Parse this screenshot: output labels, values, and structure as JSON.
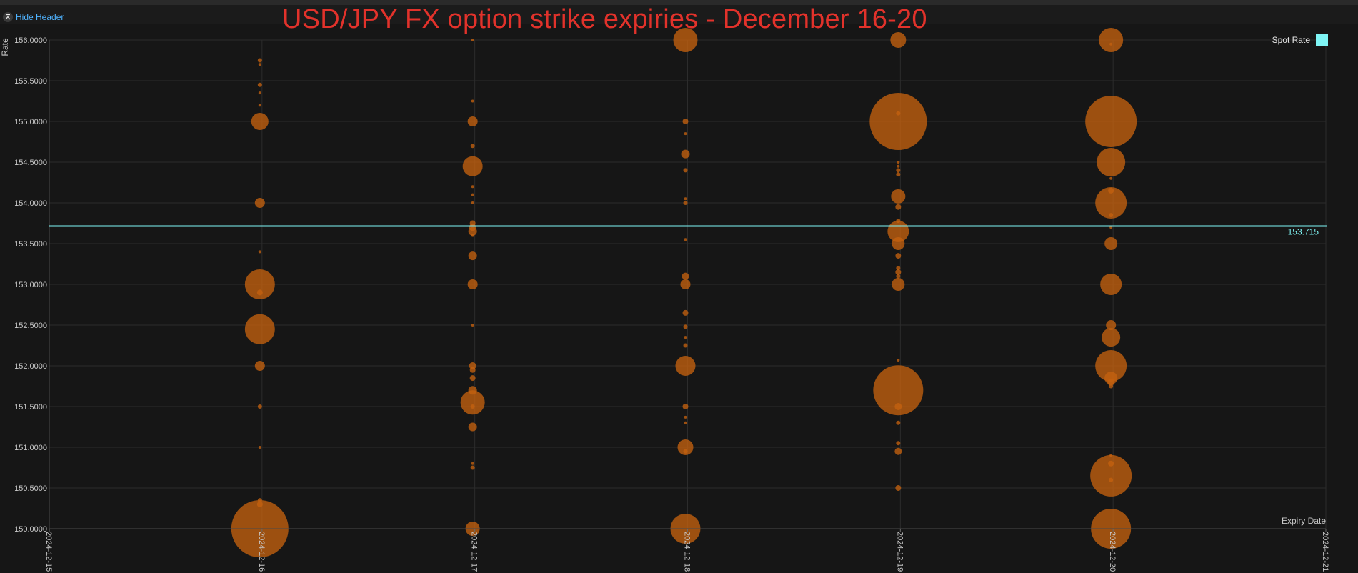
{
  "header": {
    "toggle_label": "Hide Header",
    "title": "USD/JPY FX option strike expiries - December 16-20"
  },
  "colors": {
    "bubble": "#c4620f",
    "spot": "#7ff5f5",
    "title": "#e2322b",
    "grid": "#2c2c2c"
  },
  "chart_data": {
    "type": "scatter",
    "title": "USD/JPY FX option strike expiries - December 16-20",
    "xlabel": "Expiry Date",
    "ylabel": "Rate",
    "ylim": [
      150.0,
      156.0
    ],
    "y_ticks": [
      "150.0000",
      "150.5000",
      "151.0000",
      "151.5000",
      "152.0000",
      "152.5000",
      "153.0000",
      "153.5000",
      "154.0000",
      "154.5000",
      "155.0000",
      "155.5000",
      "156.0000"
    ],
    "x_ticks": [
      "2024-12-15",
      "2024-12-16",
      "2024-12-17",
      "2024-12-18",
      "2024-12-19",
      "2024-12-20",
      "2024-12-21"
    ],
    "legend": {
      "label": "Spot Rate",
      "position": "top-right"
    },
    "spot_rate": {
      "value": 153.715,
      "label": "153.715"
    },
    "grid": true,
    "series": [
      {
        "x": "2024-12-16",
        "points": [
          [
            155.75,
            3
          ],
          [
            155.7,
            2
          ],
          [
            155.45,
            3
          ],
          [
            155.35,
            2
          ],
          [
            155.2,
            2
          ],
          [
            155.0,
            12
          ],
          [
            154.0,
            7
          ],
          [
            153.4,
            2
          ],
          [
            153.0,
            21
          ],
          [
            152.9,
            4
          ],
          [
            152.45,
            21
          ],
          [
            152.0,
            7
          ],
          [
            151.5,
            3
          ],
          [
            151.0,
            2
          ],
          [
            150.35,
            3
          ],
          [
            150.3,
            4
          ],
          [
            150.0,
            40
          ]
        ]
      },
      {
        "x": "2024-12-17",
        "points": [
          [
            156.0,
            2
          ],
          [
            155.25,
            2
          ],
          [
            155.0,
            7
          ],
          [
            154.7,
            3
          ],
          [
            154.45,
            14
          ],
          [
            154.2,
            2
          ],
          [
            154.1,
            2
          ],
          [
            154.0,
            2
          ],
          [
            153.75,
            4
          ],
          [
            153.7,
            5
          ],
          [
            153.65,
            6
          ],
          [
            153.6,
            2
          ],
          [
            153.35,
            6
          ],
          [
            153.0,
            7
          ],
          [
            152.5,
            2
          ],
          [
            152.0,
            5
          ],
          [
            151.95,
            4
          ],
          [
            151.85,
            4
          ],
          [
            151.7,
            6
          ],
          [
            151.55,
            17
          ],
          [
            151.5,
            3
          ],
          [
            151.25,
            6
          ],
          [
            150.8,
            2
          ],
          [
            150.75,
            3
          ],
          [
            150.0,
            10
          ]
        ]
      },
      {
        "x": "2024-12-18",
        "points": [
          [
            156.0,
            17
          ],
          [
            155.0,
            4
          ],
          [
            154.85,
            2
          ],
          [
            154.6,
            6
          ],
          [
            154.4,
            3
          ],
          [
            154.05,
            2
          ],
          [
            154.0,
            3
          ],
          [
            153.55,
            2
          ],
          [
            153.1,
            5
          ],
          [
            153.0,
            7
          ],
          [
            152.65,
            4
          ],
          [
            152.48,
            3
          ],
          [
            152.35,
            2
          ],
          [
            152.25,
            3
          ],
          [
            152.0,
            14
          ],
          [
            151.5,
            4
          ],
          [
            151.37,
            2
          ],
          [
            151.3,
            2
          ],
          [
            151.0,
            11
          ],
          [
            150.95,
            3
          ],
          [
            150.0,
            21
          ]
        ]
      },
      {
        "x": "2024-12-19",
        "points": [
          [
            156.0,
            11
          ],
          [
            155.1,
            3
          ],
          [
            155.0,
            40
          ],
          [
            154.5,
            2
          ],
          [
            154.45,
            2
          ],
          [
            154.4,
            3
          ],
          [
            154.35,
            3
          ],
          [
            154.08,
            10
          ],
          [
            153.95,
            4
          ],
          [
            153.78,
            3
          ],
          [
            153.65,
            15
          ],
          [
            153.5,
            9
          ],
          [
            153.35,
            4
          ],
          [
            153.2,
            3
          ],
          [
            153.15,
            4
          ],
          [
            153.1,
            3
          ],
          [
            153.0,
            9
          ],
          [
            152.07,
            2
          ],
          [
            151.7,
            35
          ],
          [
            151.5,
            5
          ],
          [
            151.3,
            3
          ],
          [
            151.05,
            3
          ],
          [
            150.95,
            5
          ],
          [
            150.5,
            4
          ]
        ]
      },
      {
        "x": "2024-12-20",
        "points": [
          [
            156.0,
            17
          ],
          [
            155.95,
            2
          ],
          [
            155.0,
            36
          ],
          [
            154.5,
            20
          ],
          [
            154.3,
            2
          ],
          [
            154.15,
            4
          ],
          [
            154.0,
            22
          ],
          [
            153.85,
            3
          ],
          [
            153.7,
            2
          ],
          [
            153.5,
            9
          ],
          [
            153.0,
            15
          ],
          [
            152.5,
            7
          ],
          [
            152.35,
            13
          ],
          [
            152.0,
            22
          ],
          [
            151.85,
            9
          ],
          [
            151.8,
            5
          ],
          [
            151.75,
            3
          ],
          [
            150.9,
            2
          ],
          [
            150.8,
            4
          ],
          [
            150.65,
            29
          ],
          [
            150.6,
            3
          ],
          [
            150.0,
            28
          ]
        ]
      }
    ]
  }
}
